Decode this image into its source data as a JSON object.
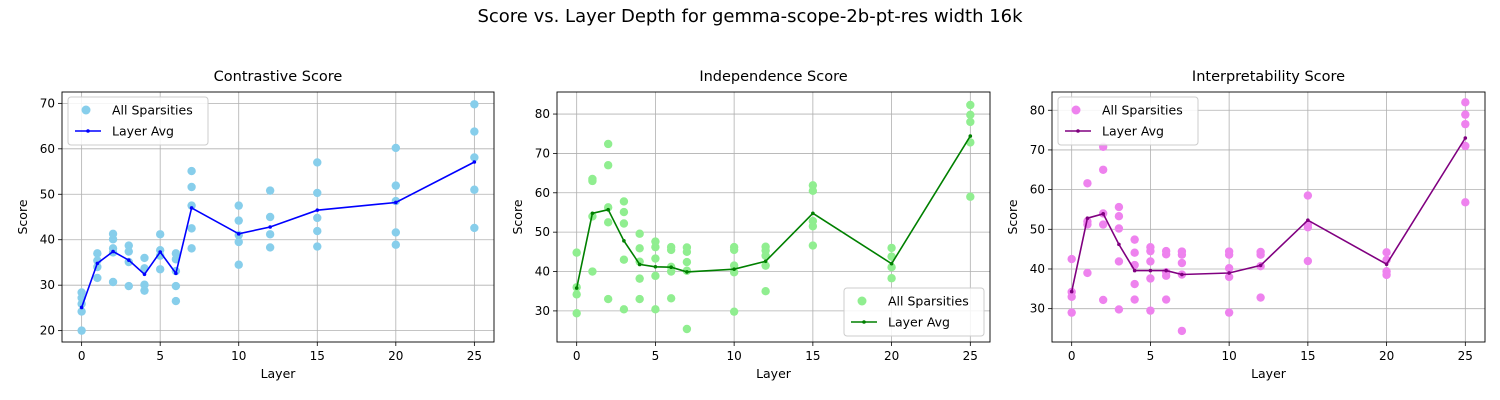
{
  "figure": {
    "title": "Score vs. Layer Depth for gemma-scope-2b-pt-res width 16k"
  },
  "chart_data": [
    {
      "type": "scatter",
      "title": "Contrastive Score",
      "xlabel": "Layer",
      "ylabel": "Score",
      "xlim": [
        -1.25,
        26.25
      ],
      "ylim": [
        17.5,
        72.5
      ],
      "xticks": [
        0,
        5,
        10,
        15,
        20,
        25
      ],
      "yticks": [
        20,
        30,
        40,
        50,
        60,
        70
      ],
      "grid": true,
      "legend_position": "upper left",
      "scatter_color": "#87ceeb",
      "line_color": "#0000ff",
      "series": [
        {
          "name": "All Sparsities",
          "kind": "scatter",
          "points": [
            [
              0,
              28.4
            ],
            [
              0,
              27.2
            ],
            [
              0,
              25.9
            ],
            [
              0,
              24.2
            ],
            [
              0,
              20.0
            ],
            [
              1,
              37.0
            ],
            [
              1,
              35.4
            ],
            [
              1,
              34.0
            ],
            [
              1,
              31.6
            ],
            [
              2,
              41.3
            ],
            [
              2,
              40.1
            ],
            [
              2,
              38.1
            ],
            [
              2,
              37.2
            ],
            [
              2,
              30.7
            ],
            [
              3,
              38.7
            ],
            [
              3,
              37.4
            ],
            [
              3,
              35.1
            ],
            [
              3,
              29.8
            ],
            [
              4,
              36.0
            ],
            [
              4,
              33.7
            ],
            [
              4,
              30.1
            ],
            [
              4,
              28.8
            ],
            [
              5,
              41.2
            ],
            [
              5,
              37.7
            ],
            [
              5,
              36.5
            ],
            [
              5,
              33.5
            ],
            [
              6,
              37.0
            ],
            [
              6,
              35.7
            ],
            [
              6,
              33.1
            ],
            [
              6,
              29.8
            ],
            [
              6,
              26.5
            ],
            [
              7,
              55.1
            ],
            [
              7,
              51.6
            ],
            [
              7,
              47.5
            ],
            [
              7,
              42.5
            ],
            [
              7,
              38.1
            ],
            [
              10,
              47.5
            ],
            [
              10,
              44.2
            ],
            [
              10,
              41.0
            ],
            [
              10,
              39.5
            ],
            [
              10,
              34.5
            ],
            [
              12,
              50.8
            ],
            [
              12,
              45.0
            ],
            [
              12,
              41.2
            ],
            [
              12,
              38.3
            ],
            [
              15,
              57.0
            ],
            [
              15,
              50.3
            ],
            [
              15,
              44.8
            ],
            [
              15,
              41.9
            ],
            [
              15,
              38.5
            ],
            [
              20,
              60.2
            ],
            [
              20,
              51.9
            ],
            [
              20,
              48.5
            ],
            [
              20,
              41.6
            ],
            [
              20,
              38.9
            ],
            [
              25,
              69.8
            ],
            [
              25,
              63.8
            ],
            [
              25,
              58.1
            ],
            [
              25,
              51.0
            ],
            [
              25,
              42.6
            ]
          ]
        },
        {
          "name": "Layer Avg",
          "kind": "line",
          "points": [
            [
              0,
              25.1
            ],
            [
              1,
              34.8
            ],
            [
              2,
              37.4
            ],
            [
              3,
              35.5
            ],
            [
              4,
              32.4
            ],
            [
              5,
              37.3
            ],
            [
              6,
              32.6
            ],
            [
              7,
              47.0
            ],
            [
              10,
              41.3
            ],
            [
              12,
              42.8
            ],
            [
              15,
              46.5
            ],
            [
              20,
              48.2
            ],
            [
              25,
              57.1
            ]
          ]
        }
      ]
    },
    {
      "type": "scatter",
      "title": "Independence Score",
      "xlabel": "Layer",
      "ylabel": "Score",
      "xlim": [
        -1.25,
        26.25
      ],
      "ylim": [
        22.1,
        85.6
      ],
      "xticks": [
        0,
        5,
        10,
        15,
        20,
        25
      ],
      "yticks": [
        30,
        40,
        50,
        60,
        70,
        80
      ],
      "grid": true,
      "legend_position": "lower right",
      "scatter_color": "#90ee90",
      "line_color": "#008000",
      "series": [
        {
          "name": "All Sparsities",
          "kind": "scatter",
          "points": [
            [
              0,
              44.8
            ],
            [
              0,
              36.0
            ],
            [
              0,
              34.2
            ],
            [
              0,
              29.4
            ],
            [
              1,
              63.5
            ],
            [
              1,
              63.0
            ],
            [
              1,
              54.0
            ],
            [
              1,
              40.0
            ],
            [
              2,
              72.4
            ],
            [
              2,
              67.0
            ],
            [
              2,
              56.3
            ],
            [
              2,
              52.5
            ],
            [
              2,
              33.0
            ],
            [
              3,
              57.8
            ],
            [
              3,
              55.1
            ],
            [
              3,
              52.2
            ],
            [
              3,
              43.0
            ],
            [
              3,
              30.4
            ],
            [
              4,
              49.6
            ],
            [
              4,
              45.9
            ],
            [
              4,
              42.5
            ],
            [
              4,
              38.2
            ],
            [
              4,
              33.0
            ],
            [
              5,
              47.6
            ],
            [
              5,
              46.2
            ],
            [
              5,
              43.3
            ],
            [
              5,
              38.9
            ],
            [
              5,
              30.4
            ],
            [
              6,
              46.2
            ],
            [
              6,
              45.5
            ],
            [
              6,
              41.2
            ],
            [
              6,
              40.0
            ],
            [
              6,
              33.2
            ],
            [
              7,
              46.1
            ],
            [
              7,
              45.0
            ],
            [
              7,
              42.4
            ],
            [
              7,
              40.2
            ],
            [
              7,
              25.4
            ],
            [
              10,
              46.2
            ],
            [
              10,
              45.5
            ],
            [
              10,
              41.5
            ],
            [
              10,
              39.8
            ],
            [
              10,
              29.8
            ],
            [
              12,
              46.3
            ],
            [
              12,
              45.3
            ],
            [
              12,
              44.0
            ],
            [
              12,
              41.5
            ],
            [
              12,
              35.0
            ],
            [
              15,
              61.9
            ],
            [
              15,
              60.5
            ],
            [
              15,
              52.8
            ],
            [
              15,
              51.5
            ],
            [
              15,
              46.6
            ],
            [
              20,
              46.0
            ],
            [
              20,
              43.8
            ],
            [
              20,
              41.1
            ],
            [
              20,
              38.3
            ],
            [
              25,
              82.3
            ],
            [
              25,
              79.8
            ],
            [
              25,
              78.0
            ],
            [
              25,
              72.8
            ],
            [
              25,
              59.0
            ]
          ]
        },
        {
          "name": "Layer Avg",
          "kind": "line",
          "points": [
            [
              0,
              35.8
            ],
            [
              1,
              54.8
            ],
            [
              2,
              55.7
            ],
            [
              3,
              47.8
            ],
            [
              4,
              41.8
            ],
            [
              5,
              41.2
            ],
            [
              6,
              41.1
            ],
            [
              7,
              39.9
            ],
            [
              10,
              40.6
            ],
            [
              12,
              42.6
            ],
            [
              15,
              54.8
            ],
            [
              20,
              42.0
            ],
            [
              25,
              74.4
            ]
          ]
        }
      ]
    },
    {
      "type": "scatter",
      "title": "Interpretability Score",
      "xlabel": "Layer",
      "ylabel": "Score",
      "xlim": [
        -1.25,
        26.25
      ],
      "ylim": [
        21.6,
        84.6
      ],
      "xticks": [
        0,
        5,
        10,
        15,
        20,
        25
      ],
      "yticks": [
        30,
        40,
        50,
        60,
        70,
        80
      ],
      "grid": true,
      "legend_position": "upper left",
      "scatter_color": "#ee82ee",
      "line_color": "#800080",
      "series": [
        {
          "name": "All Sparsities",
          "kind": "scatter",
          "points": [
            [
              0,
              42.5
            ],
            [
              0,
              34.2
            ],
            [
              0,
              33.0
            ],
            [
              0,
              29.0
            ],
            [
              1,
              61.6
            ],
            [
              1,
              52.0
            ],
            [
              1,
              51.2
            ],
            [
              1,
              39.0
            ],
            [
              2,
              70.8
            ],
            [
              2,
              65.0
            ],
            [
              2,
              54.0
            ],
            [
              2,
              51.2
            ],
            [
              2,
              32.2
            ],
            [
              3,
              55.6
            ],
            [
              3,
              53.3
            ],
            [
              3,
              50.2
            ],
            [
              3,
              41.9
            ],
            [
              3,
              29.8
            ],
            [
              4,
              47.4
            ],
            [
              4,
              44.1
            ],
            [
              4,
              41.0
            ],
            [
              4,
              36.2
            ],
            [
              4,
              32.3
            ],
            [
              5,
              45.5
            ],
            [
              5,
              44.5
            ],
            [
              5,
              41.9
            ],
            [
              5,
              37.6
            ],
            [
              5,
              29.5
            ],
            [
              6,
              44.5
            ],
            [
              6,
              43.7
            ],
            [
              6,
              39.2
            ],
            [
              6,
              38.3
            ],
            [
              6,
              32.3
            ],
            [
              7,
              44.4
            ],
            [
              7,
              43.6
            ],
            [
              7,
              41.5
            ],
            [
              7,
              38.6
            ],
            [
              7,
              24.4
            ],
            [
              10,
              44.4
            ],
            [
              10,
              43.6
            ],
            [
              10,
              40.2
            ],
            [
              10,
              38.0
            ],
            [
              10,
              29.0
            ],
            [
              12,
              44.3
            ],
            [
              12,
              43.6
            ],
            [
              12,
              40.7
            ],
            [
              12,
              32.8
            ],
            [
              15,
              58.5
            ],
            [
              15,
              51.2
            ],
            [
              15,
              50.5
            ],
            [
              15,
              42.0
            ],
            [
              20,
              44.2
            ],
            [
              20,
              42.3
            ],
            [
              20,
              39.4
            ],
            [
              20,
              38.5
            ],
            [
              25,
              82.0
            ],
            [
              25,
              78.9
            ],
            [
              25,
              76.5
            ],
            [
              25,
              71.0
            ],
            [
              25,
              56.8
            ]
          ]
        },
        {
          "name": "Layer Avg",
          "kind": "line",
          "points": [
            [
              0,
              34.3
            ],
            [
              1,
              52.8
            ],
            [
              2,
              53.9
            ],
            [
              3,
              46.2
            ],
            [
              4,
              39.6
            ],
            [
              5,
              39.6
            ],
            [
              6,
              39.6
            ],
            [
              7,
              38.6
            ],
            [
              10,
              39.0
            ],
            [
              12,
              40.9
            ],
            [
              15,
              52.3
            ],
            [
              20,
              41.2
            ],
            [
              25,
              73.0
            ]
          ]
        }
      ]
    }
  ]
}
